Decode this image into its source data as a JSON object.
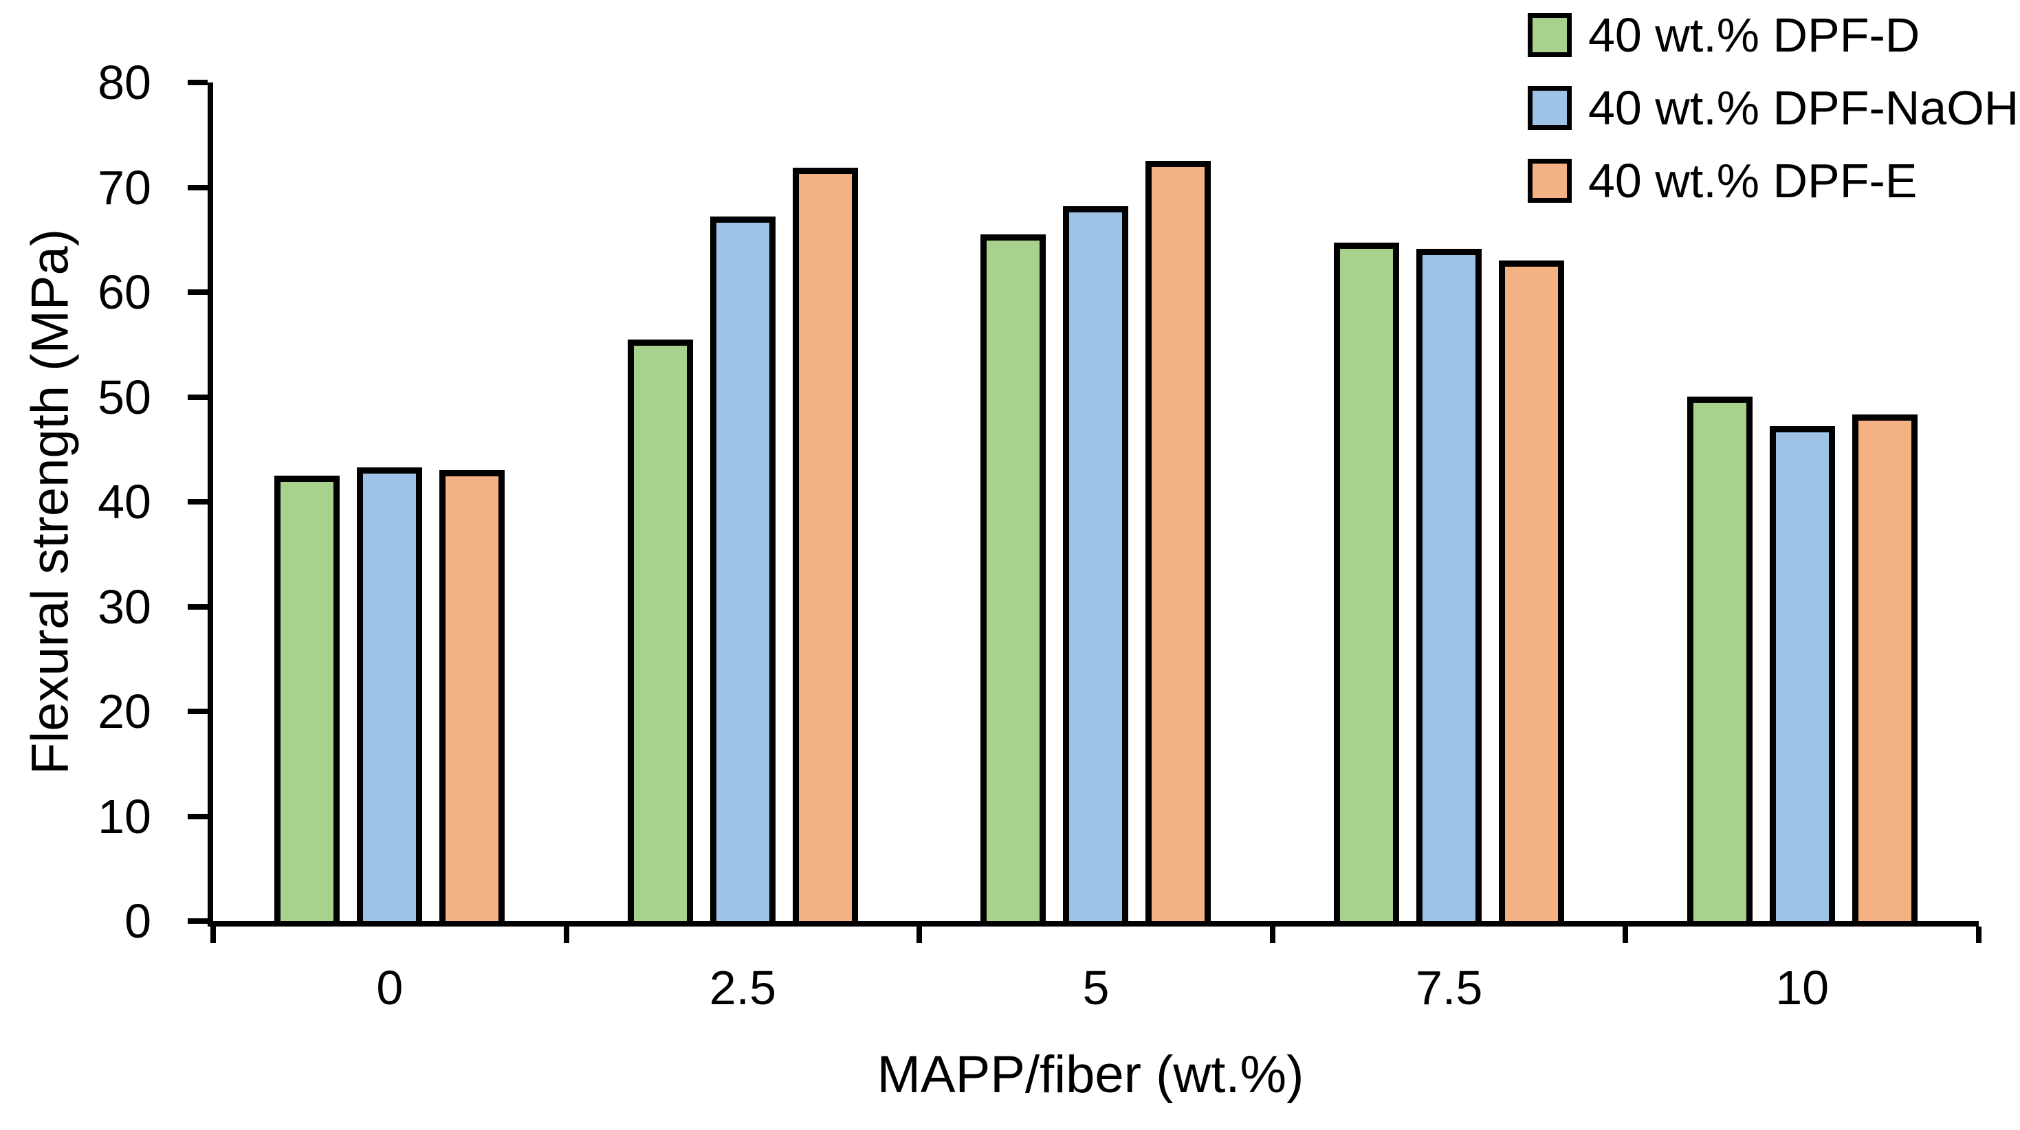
{
  "chart_data": {
    "type": "bar",
    "title": "",
    "xlabel": "MAPP/fiber (wt.%)",
    "ylabel": "Flexural strength (MPa)",
    "categories": [
      "0",
      "2.5",
      "5",
      "7.5",
      "10"
    ],
    "series": [
      {
        "name": "40 wt.% DPF-D",
        "color": "#a9d18e",
        "values": [
          42.5,
          55.5,
          65.5,
          64.7,
          50.0
        ]
      },
      {
        "name": "40 wt.% DPF-NaOH",
        "color": "#9dc3e6",
        "values": [
          43.3,
          67.2,
          68.2,
          64.1,
          47.2
        ]
      },
      {
        "name": "40 wt.% DPF-E",
        "color": "#f4b183",
        "values": [
          43.0,
          71.9,
          72.5,
          63.0,
          48.3
        ]
      }
    ],
    "ylim": [
      0,
      80
    ],
    "ytick_step": 10,
    "yticks": [
      "0",
      "10",
      "20",
      "30",
      "40",
      "50",
      "60",
      "70",
      "80"
    ],
    "grid": false,
    "legend_position": "top-right",
    "bar_border_color": "#000000",
    "axis_color": "#000000"
  }
}
